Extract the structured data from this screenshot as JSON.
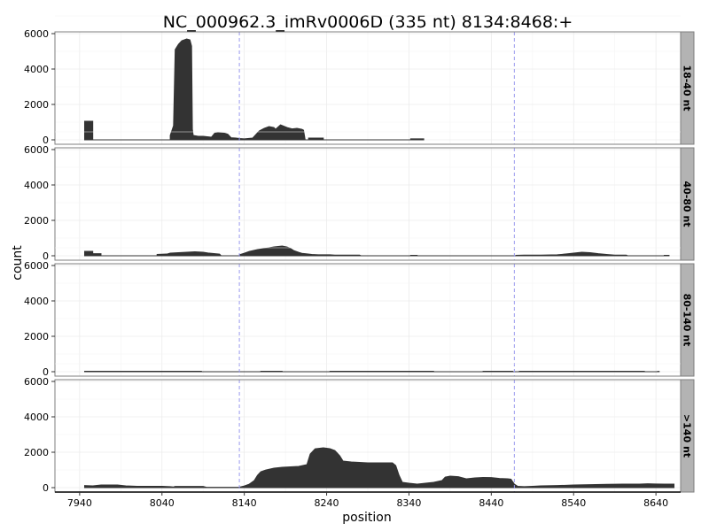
{
  "chart_data": {
    "type": "area",
    "title": "NC_000962.3_imRv0006D (335 nt) 8134:8468:+",
    "xlabel": "position",
    "ylabel": "count",
    "xlim": [
      7910,
      8670
    ],
    "ylim": [
      0,
      6000
    ],
    "x_ticks": [
      7940,
      8040,
      8140,
      8240,
      8340,
      8440,
      8540,
      8640
    ],
    "y_ticks": [
      0,
      2000,
      4000,
      6000
    ],
    "vlines": [
      8134,
      8468
    ],
    "vline_color": "#9999ee",
    "fill_color": "#333333",
    "strip_color": "#b3b3b3",
    "grid": true,
    "panels": [
      {
        "label": "18-40 nt",
        "points": [
          [
            7946,
            0
          ],
          [
            7946,
            1050
          ],
          [
            7956,
            1050
          ],
          [
            7956,
            0
          ],
          [
            8050,
            0
          ],
          [
            8050,
            250
          ],
          [
            8054,
            800
          ],
          [
            8056,
            5100
          ],
          [
            8060,
            5400
          ],
          [
            8064,
            5600
          ],
          [
            8070,
            5700
          ],
          [
            8074,
            5650
          ],
          [
            8076,
            5300
          ],
          [
            8077,
            600
          ],
          [
            8078,
            250
          ],
          [
            8084,
            200
          ],
          [
            8090,
            200
          ],
          [
            8100,
            150
          ],
          [
            8104,
            380
          ],
          [
            8108,
            400
          ],
          [
            8116,
            380
          ],
          [
            8120,
            320
          ],
          [
            8124,
            120
          ],
          [
            8130,
            100
          ],
          [
            8134,
            80
          ],
          [
            8140,
            60
          ],
          [
            8150,
            100
          ],
          [
            8154,
            300
          ],
          [
            8158,
            500
          ],
          [
            8164,
            650
          ],
          [
            8170,
            750
          ],
          [
            8176,
            700
          ],
          [
            8178,
            600
          ],
          [
            8184,
            850
          ],
          [
            8192,
            700
          ],
          [
            8198,
            620
          ],
          [
            8204,
            650
          ],
          [
            8210,
            600
          ],
          [
            8212,
            550
          ],
          [
            8214,
            0
          ],
          [
            8218,
            0
          ],
          [
            8218,
            100
          ],
          [
            8236,
            100
          ],
          [
            8236,
            0
          ],
          [
            8342,
            0
          ],
          [
            8342,
            60
          ],
          [
            8358,
            60
          ],
          [
            8358,
            0
          ]
        ]
      },
      {
        "label": "40-80 nt",
        "points": [
          [
            7946,
            0
          ],
          [
            7946,
            250
          ],
          [
            7956,
            250
          ],
          [
            7956,
            120
          ],
          [
            7966,
            120
          ],
          [
            7966,
            0
          ],
          [
            8034,
            0
          ],
          [
            8034,
            80
          ],
          [
            8046,
            100
          ],
          [
            8050,
            150
          ],
          [
            8060,
            180
          ],
          [
            8070,
            200
          ],
          [
            8080,
            230
          ],
          [
            8090,
            200
          ],
          [
            8096,
            160
          ],
          [
            8110,
            100
          ],
          [
            8112,
            0
          ],
          [
            8134,
            0
          ],
          [
            8134,
            60
          ],
          [
            8140,
            150
          ],
          [
            8146,
            250
          ],
          [
            8156,
            350
          ],
          [
            8166,
            420
          ],
          [
            8176,
            500
          ],
          [
            8186,
            550
          ],
          [
            8192,
            500
          ],
          [
            8196,
            420
          ],
          [
            8200,
            300
          ],
          [
            8206,
            200
          ],
          [
            8210,
            140
          ],
          [
            8214,
            120
          ],
          [
            8222,
            80
          ],
          [
            8230,
            60
          ],
          [
            8234,
            60
          ],
          [
            8238,
            60
          ],
          [
            8244,
            60
          ],
          [
            8250,
            40
          ],
          [
            8260,
            40
          ],
          [
            8270,
            40
          ],
          [
            8280,
            40
          ],
          [
            8282,
            0
          ],
          [
            8342,
            0
          ],
          [
            8342,
            30
          ],
          [
            8350,
            30
          ],
          [
            8350,
            0
          ],
          [
            8470,
            0
          ],
          [
            8470,
            30
          ],
          [
            8480,
            40
          ],
          [
            8500,
            40
          ],
          [
            8520,
            60
          ],
          [
            8530,
            100
          ],
          [
            8540,
            150
          ],
          [
            8550,
            200
          ],
          [
            8560,
            180
          ],
          [
            8570,
            120
          ],
          [
            8580,
            80
          ],
          [
            8590,
            40
          ],
          [
            8604,
            40
          ],
          [
            8606,
            0
          ],
          [
            8650,
            0
          ],
          [
            8650,
            30
          ],
          [
            8656,
            30
          ],
          [
            8656,
            0
          ]
        ]
      },
      {
        "label": "80-140 nt",
        "points": [
          [
            7946,
            0
          ],
          [
            7946,
            30
          ],
          [
            8088,
            30
          ],
          [
            8088,
            0
          ],
          [
            8160,
            0
          ],
          [
            8160,
            30
          ],
          [
            8186,
            30
          ],
          [
            8186,
            0
          ],
          [
            8244,
            0
          ],
          [
            8244,
            30
          ],
          [
            8370,
            30
          ],
          [
            8370,
            0
          ],
          [
            8430,
            0
          ],
          [
            8430,
            30
          ],
          [
            8466,
            30
          ],
          [
            8466,
            0
          ],
          [
            8474,
            0
          ],
          [
            8474,
            30
          ],
          [
            8626,
            30
          ],
          [
            8626,
            0
          ],
          [
            8642,
            0
          ],
          [
            8642,
            20
          ],
          [
            8644,
            20
          ],
          [
            8644,
            0
          ]
        ]
      },
      {
        "label": ">140 nt",
        "points": [
          [
            7946,
            0
          ],
          [
            7946,
            120
          ],
          [
            7956,
            100
          ],
          [
            7966,
            150
          ],
          [
            7986,
            150
          ],
          [
            7996,
            100
          ],
          [
            8010,
            80
          ],
          [
            8040,
            80
          ],
          [
            8050,
            60
          ],
          [
            8054,
            40
          ],
          [
            8056,
            70
          ],
          [
            8090,
            70
          ],
          [
            8094,
            20
          ],
          [
            8130,
            20
          ],
          [
            8134,
            30
          ],
          [
            8140,
            100
          ],
          [
            8146,
            200
          ],
          [
            8152,
            400
          ],
          [
            8156,
            700
          ],
          [
            8160,
            900
          ],
          [
            8166,
            1000
          ],
          [
            8176,
            1100
          ],
          [
            8186,
            1150
          ],
          [
            8196,
            1180
          ],
          [
            8206,
            1200
          ],
          [
            8216,
            1300
          ],
          [
            8220,
            1900
          ],
          [
            8226,
            2200
          ],
          [
            8236,
            2250
          ],
          [
            8244,
            2200
          ],
          [
            8250,
            2100
          ],
          [
            8256,
            1800
          ],
          [
            8260,
            1500
          ],
          [
            8270,
            1450
          ],
          [
            8290,
            1400
          ],
          [
            8320,
            1400
          ],
          [
            8324,
            1250
          ],
          [
            8328,
            700
          ],
          [
            8332,
            300
          ],
          [
            8340,
            250
          ],
          [
            8350,
            200
          ],
          [
            8360,
            250
          ],
          [
            8370,
            300
          ],
          [
            8380,
            400
          ],
          [
            8384,
            600
          ],
          [
            8390,
            650
          ],
          [
            8400,
            620
          ],
          [
            8410,
            500
          ],
          [
            8420,
            550
          ],
          [
            8430,
            580
          ],
          [
            8440,
            570
          ],
          [
            8450,
            520
          ],
          [
            8460,
            500
          ],
          [
            8464,
            480
          ],
          [
            8468,
            200
          ],
          [
            8472,
            80
          ],
          [
            8480,
            60
          ],
          [
            8490,
            80
          ],
          [
            8500,
            100
          ],
          [
            8520,
            120
          ],
          [
            8540,
            150
          ],
          [
            8560,
            170
          ],
          [
            8580,
            190
          ],
          [
            8600,
            200
          ],
          [
            8620,
            200
          ],
          [
            8630,
            220
          ],
          [
            8640,
            210
          ],
          [
            8650,
            200
          ],
          [
            8662,
            200
          ],
          [
            8662,
            0
          ]
        ]
      }
    ]
  }
}
